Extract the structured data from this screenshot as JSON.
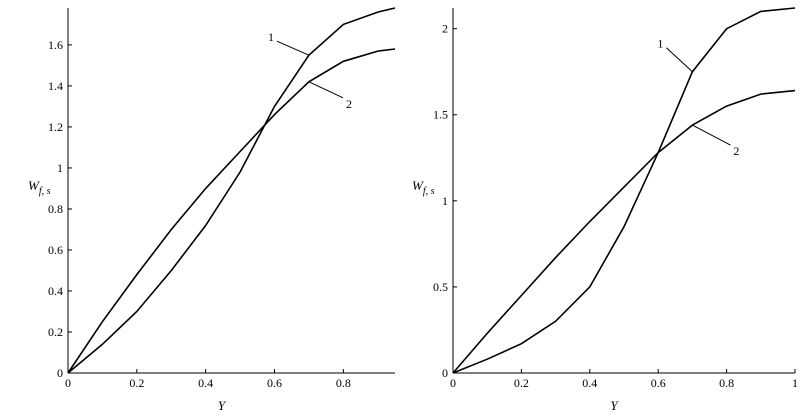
{
  "chart_data": [
    {
      "type": "line",
      "xlabel": "Y",
      "ylabel": "W",
      "ylabel_sub": "f, s",
      "x": [
        0,
        0.1,
        0.2,
        0.3,
        0.4,
        0.5,
        0.6,
        0.7,
        0.8,
        0.9,
        0.95
      ],
      "xlim": [
        0,
        0.95
      ],
      "xticks": [
        0,
        0.2,
        0.4,
        0.6,
        0.8
      ],
      "ylim": [
        0,
        1.78
      ],
      "yticks": [
        0,
        0.2,
        0.4,
        0.6,
        0.8,
        1,
        1.2,
        1.4,
        1.6
      ],
      "series": [
        {
          "name": "1",
          "color": "#000000",
          "values": [
            0,
            0.14,
            0.3,
            0.5,
            0.72,
            0.98,
            1.3,
            1.55,
            1.7,
            1.76,
            1.78
          ]
        },
        {
          "name": "2",
          "color": "#000000",
          "values": [
            0,
            0.25,
            0.48,
            0.7,
            0.9,
            1.08,
            1.26,
            1.42,
            1.52,
            1.57,
            1.58
          ]
        }
      ]
    },
    {
      "type": "line",
      "xlabel": "Y",
      "ylabel": "W",
      "ylabel_sub": "f, s",
      "x": [
        0,
        0.1,
        0.2,
        0.3,
        0.4,
        0.5,
        0.6,
        0.7,
        0.8,
        0.9,
        1
      ],
      "xlim": [
        0,
        1
      ],
      "xticks": [
        0,
        0.2,
        0.4,
        0.6,
        0.8,
        1
      ],
      "ylim": [
        0,
        2.12
      ],
      "yticks": [
        0,
        0.5,
        1,
        1.5,
        2
      ],
      "series": [
        {
          "name": "1",
          "color": "#000000",
          "values": [
            0,
            0.08,
            0.17,
            0.3,
            0.5,
            0.85,
            1.28,
            1.75,
            2.0,
            2.1,
            2.12
          ]
        },
        {
          "name": "2",
          "color": "#000000",
          "values": [
            0,
            0.23,
            0.45,
            0.67,
            0.88,
            1.08,
            1.28,
            1.44,
            1.55,
            1.62,
            1.64
          ]
        }
      ]
    }
  ]
}
